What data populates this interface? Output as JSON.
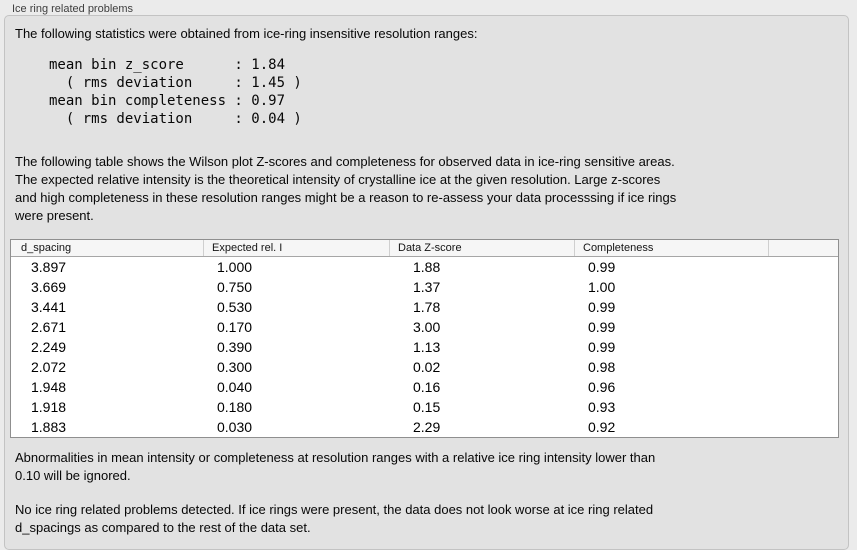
{
  "panel": {
    "title": "Ice ring related problems"
  },
  "intro": {
    "text": "The following statistics were obtained from ice-ring insensitive resolution ranges:"
  },
  "stats": {
    "lines": [
      "mean bin z_score      : 1.84",
      "  ( rms deviation     : 1.45 )",
      "mean bin completeness : 0.97",
      "  ( rms deviation     : 0.04 )"
    ],
    "mean_bin_z_score": "1.84",
    "z_score_rms_deviation": "1.45",
    "mean_bin_completeness": "0.97",
    "completeness_rms_deviation": "0.04"
  },
  "description": {
    "text": "The following table shows the Wilson plot Z-scores and completeness for observed data in ice-ring sensitive areas.\nThe expected relative intensity is the theoretical intensity of crystalline ice at the given resolution. Large z-scores\nand high completeness in these resolution ranges might be a reason to re-assess your data processsing if ice rings\nwere present."
  },
  "table": {
    "columns": [
      "d_spacing",
      "Expected rel. I",
      "Data Z-score",
      "Completeness",
      ""
    ],
    "rows": [
      [
        "3.897",
        "1.000",
        "1.88",
        "0.99",
        ""
      ],
      [
        "3.669",
        "0.750",
        "1.37",
        "1.00",
        ""
      ],
      [
        "3.441",
        "0.530",
        "1.78",
        "0.99",
        ""
      ],
      [
        "2.671",
        "0.170",
        "3.00",
        "0.99",
        ""
      ],
      [
        "2.249",
        "0.390",
        "1.13",
        "0.99",
        ""
      ],
      [
        "2.072",
        "0.300",
        "0.02",
        "0.98",
        ""
      ],
      [
        "1.948",
        "0.040",
        "0.16",
        "0.96",
        ""
      ],
      [
        "1.918",
        "0.180",
        "0.15",
        "0.93",
        ""
      ],
      [
        "1.883",
        "0.030",
        "2.29",
        "0.92",
        ""
      ]
    ]
  },
  "notes": {
    "threshold": "Abnormalities in mean intensity or completeness at resolution ranges with a relative ice ring intensity lower than\n0.10 will be ignored.",
    "result": "No ice ring related problems detected. If ice rings were present, the data does not look worse at ice ring related\nd_spacings as compared to the rest of the data set."
  },
  "colors": {
    "page_bg": "#ebebeb",
    "panel_bg": "#e2e2e2",
    "table_bg": "#ffffff",
    "table_header_bg": "#f6f6f6"
  }
}
